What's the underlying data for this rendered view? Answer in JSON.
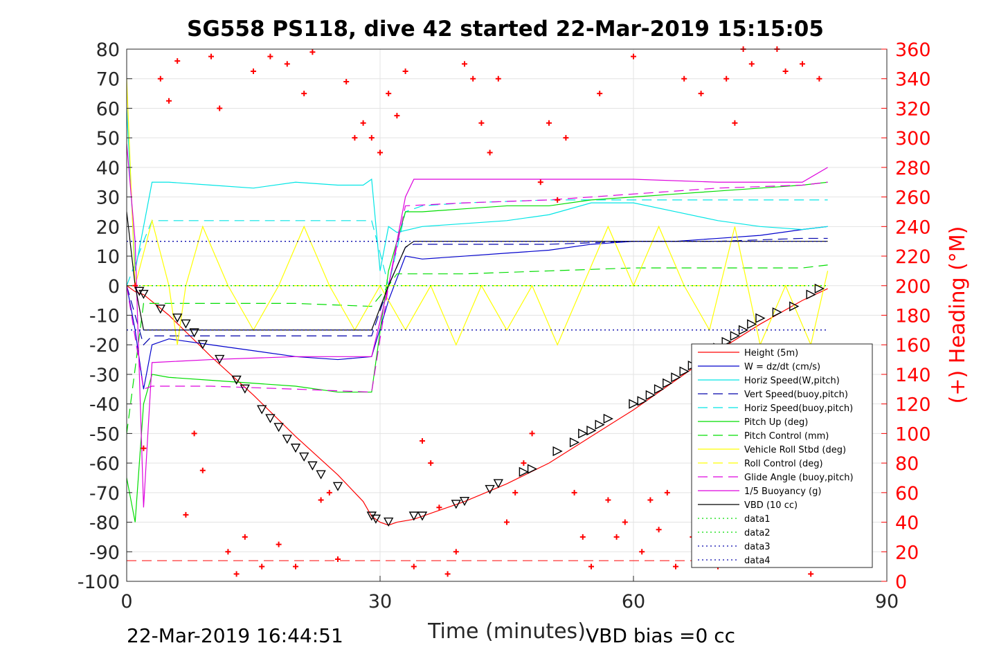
{
  "chart_data": {
    "type": "line",
    "title": "SG558 PS118, dive 42 started 22-Mar-2019 15:15:05",
    "xlabel": "Time (minutes)",
    "ylabel": "",
    "y2label": "(+) Heading (°M)",
    "xlim": [
      0,
      90
    ],
    "ylim": [
      -100,
      80
    ],
    "y2lim": [
      0,
      360
    ],
    "xticks": [
      "0",
      "30",
      "60",
      "90"
    ],
    "yticks": [
      "80",
      "70",
      "60",
      "50",
      "40",
      "30",
      "20",
      "10",
      "0",
      "-10",
      "-20",
      "-30",
      "-40",
      "-50",
      "-60",
      "-70",
      "-80",
      "-90",
      "-100"
    ],
    "y2ticks": [
      "360",
      "340",
      "320",
      "300",
      "280",
      "260",
      "240",
      "220",
      "200",
      "180",
      "160",
      "140",
      "120",
      "100",
      "80",
      "60",
      "40",
      "20",
      "0"
    ],
    "grid": true,
    "legend_position": "bottom-right",
    "footer_left": "22-Mar-2019 16:44:51",
    "footer_right": "VBD bias =0 cc",
    "colors": {
      "red": "#ff0000",
      "blue": "#0000cc",
      "cyan": "#00e5e5",
      "green": "#00dd00",
      "yellow": "#ffff00",
      "magenta": "#dd00dd",
      "black": "#000000",
      "navy": "#0000aa"
    },
    "series": [
      {
        "name": "Height (5m)",
        "color": "#ff0000",
        "style": "solid",
        "x": [
          0,
          1,
          2,
          5,
          10,
          15,
          20,
          25,
          28,
          29,
          30,
          31,
          32,
          34,
          36,
          40,
          45,
          50,
          55,
          60,
          65,
          70,
          75,
          80,
          83
        ],
        "y": [
          0,
          -2,
          -3,
          -10,
          -24,
          -37,
          -51,
          -64,
          -73,
          -78,
          -80,
          -81,
          -80,
          -79,
          -77,
          -73,
          -67,
          -60,
          -51,
          -42,
          -32,
          -22,
          -13,
          -5,
          -1
        ]
      },
      {
        "name": "W = dz/dt (cm/s)",
        "color": "#0000cc",
        "style": "solid",
        "x": [
          0,
          1,
          2,
          3,
          5,
          10,
          15,
          20,
          25,
          29,
          31,
          33,
          35,
          40,
          45,
          50,
          55,
          60,
          65,
          70,
          75,
          80,
          83
        ],
        "y": [
          0,
          -15,
          -35,
          -20,
          -18,
          -20,
          -22,
          -24,
          -25,
          -24,
          -5,
          10,
          9,
          10,
          11,
          12,
          14,
          15,
          15,
          16,
          17,
          19,
          20
        ]
      },
      {
        "name": "Horiz Speed(W,pitch)",
        "color": "#00e5e5",
        "style": "solid",
        "x": [
          0,
          1,
          2,
          3,
          5,
          10,
          15,
          20,
          25,
          28,
          29,
          30,
          31,
          32,
          35,
          40,
          45,
          50,
          55,
          60,
          65,
          70,
          75,
          80,
          83
        ],
        "y": [
          60,
          5,
          20,
          35,
          35,
          34,
          33,
          35,
          34,
          34,
          36,
          5,
          20,
          18,
          20,
          21,
          22,
          24,
          28,
          28,
          25,
          22,
          20,
          19,
          20
        ]
      },
      {
        "name": "Vert Speed(buoy,pitch)",
        "color": "#0000aa",
        "style": "dashed",
        "x": [
          0,
          1,
          2,
          3,
          10,
          20,
          29,
          31,
          33,
          34,
          40,
          50,
          60,
          70,
          80,
          83
        ],
        "y": [
          0,
          -10,
          -20,
          -17,
          -17,
          -17,
          -17,
          0,
          13,
          14,
          14,
          14,
          15,
          15,
          16,
          16
        ]
      },
      {
        "name": "Horiz Speed(buoy,pitch)",
        "color": "#00e5e5",
        "style": "dashed",
        "x": [
          0,
          2,
          3,
          10,
          20,
          29,
          31,
          33,
          35,
          40,
          50,
          60,
          70,
          80,
          83
        ],
        "y": [
          0,
          15,
          22,
          22,
          22,
          22,
          0,
          25,
          27,
          28,
          29,
          29,
          29,
          29,
          29
        ]
      },
      {
        "name": "Pitch Up (deg)",
        "color": "#00dd00",
        "style": "solid",
        "x": [
          0,
          1,
          2,
          3,
          5,
          10,
          15,
          20,
          25,
          29,
          31,
          33,
          35,
          40,
          45,
          50,
          55,
          60,
          65,
          70,
          75,
          80,
          83
        ],
        "y": [
          -65,
          -80,
          -40,
          -30,
          -31,
          -32,
          -33,
          -34,
          -36,
          -36,
          5,
          25,
          25,
          26,
          27,
          27,
          29,
          30,
          31,
          32,
          33,
          34,
          35
        ]
      },
      {
        "name": "Pitch Control (mm)",
        "color": "#00dd00",
        "style": "dashed",
        "x": [
          0,
          2,
          3,
          10,
          20,
          29,
          31,
          32,
          40,
          50,
          60,
          70,
          80,
          83
        ],
        "y": [
          -50,
          -6,
          -6,
          -6,
          -6,
          -7,
          0,
          4,
          4,
          5,
          6,
          6,
          6,
          7
        ]
      },
      {
        "name": "Vehicle Roll Stbd (deg)",
        "color": "#ffff00",
        "style": "solid",
        "x": [
          0,
          1,
          3,
          5,
          6,
          7,
          9,
          12,
          15,
          18,
          21,
          24,
          27,
          30,
          33,
          36,
          39,
          42,
          45,
          48,
          51,
          54,
          57,
          60,
          63,
          66,
          69,
          72,
          75,
          78,
          81,
          83
        ],
        "y": [
          70,
          0,
          22,
          0,
          -20,
          0,
          20,
          0,
          -15,
          0,
          20,
          0,
          -15,
          0,
          -15,
          0,
          -20,
          0,
          -15,
          0,
          -20,
          0,
          20,
          0,
          20,
          0,
          -15,
          20,
          -20,
          0,
          -20,
          5
        ]
      },
      {
        "name": "Roll Control (deg)",
        "color": "#ffff00",
        "style": "dashed",
        "x": [
          0,
          83
        ],
        "y": [
          0,
          0
        ]
      },
      {
        "name": "Glide Angle (buoy,pitch)",
        "color": "#dd00dd",
        "style": "dashed",
        "x": [
          0,
          2,
          3,
          10,
          20,
          29,
          31,
          33,
          40,
          50,
          60,
          70,
          80,
          83
        ],
        "y": [
          0,
          -35,
          -34,
          -34,
          -35,
          -36,
          0,
          27,
          28,
          29,
          31,
          33,
          34,
          35
        ]
      },
      {
        "name": "1/5 Buoyancy (g)",
        "color": "#dd00dd",
        "style": "solid",
        "x": [
          0,
          1,
          2,
          3,
          10,
          20,
          29,
          31,
          33,
          34,
          40,
          50,
          60,
          70,
          80,
          83
        ],
        "y": [
          48,
          15,
          -75,
          -26,
          -25,
          -24,
          -24,
          0,
          30,
          36,
          36,
          36,
          36,
          35,
          35,
          40
        ]
      },
      {
        "name": "VBD (10 cc)",
        "color": "#000000",
        "style": "solid",
        "x": [
          0,
          1,
          2,
          3,
          10,
          20,
          29,
          31,
          33,
          34,
          40,
          50,
          60,
          70,
          80,
          83
        ],
        "y": [
          25,
          0,
          -15,
          -15,
          -15,
          -15,
          -15,
          0,
          13,
          15,
          15,
          15,
          15,
          15,
          15,
          15
        ]
      },
      {
        "name": "data1",
        "color": "#00dd00",
        "style": "dotted",
        "x": [
          0,
          83
        ],
        "y": [
          0,
          0
        ]
      },
      {
        "name": "data2",
        "color": "#00dd00",
        "style": "dotted",
        "x": [
          0,
          83
        ],
        "y": [
          0,
          0
        ]
      },
      {
        "name": "data3",
        "color": "#0000aa",
        "style": "dotted",
        "x": [
          0,
          83
        ],
        "y": [
          15,
          15
        ]
      },
      {
        "name": "data4",
        "color": "#0000aa",
        "style": "dotted",
        "x": [
          0,
          83
        ],
        "y": [
          -15,
          -15
        ]
      }
    ],
    "extra_lines": [
      {
        "color": "#ff0000",
        "style": "dashed",
        "x": [
          0,
          83
        ],
        "y": [
          -93,
          -93
        ]
      }
    ],
    "heading_markers": {
      "color": "#ff0000",
      "axis": "right",
      "x": [
        1,
        2,
        4,
        5,
        6,
        7,
        8,
        9,
        10,
        11,
        12,
        13,
        14,
        15,
        16,
        17,
        18,
        19,
        20,
        21,
        22,
        23,
        24,
        25,
        26,
        27,
        28,
        29,
        30,
        31,
        32,
        33,
        34,
        35,
        36,
        37,
        38,
        39,
        40,
        41,
        42,
        43,
        44,
        45,
        46,
        47,
        48,
        49,
        50,
        51,
        52,
        53,
        54,
        55,
        56,
        57,
        58,
        59,
        60,
        61,
        62,
        63,
        64,
        65,
        66,
        67,
        68,
        69,
        70,
        71,
        72,
        73,
        74,
        75,
        76,
        77,
        78,
        79,
        80,
        81,
        82
      ],
      "y": [
        200,
        90,
        340,
        325,
        352,
        45,
        100,
        75,
        355,
        320,
        20,
        5,
        30,
        345,
        10,
        355,
        25,
        350,
        10,
        330,
        358,
        55,
        60,
        15,
        338,
        300,
        310,
        300,
        290,
        330,
        315,
        345,
        10,
        95,
        80,
        50,
        5,
        20,
        350,
        340,
        310,
        290,
        340,
        40,
        60,
        80,
        100,
        270,
        310,
        258,
        300,
        60,
        30,
        10,
        330,
        55,
        30,
        40,
        355,
        20,
        55,
        35,
        60,
        10,
        340,
        30,
        330,
        20,
        10,
        340,
        310,
        360,
        350,
        40,
        20,
        360,
        345,
        15,
        350,
        5,
        340
      ]
    },
    "vbd_markers": {
      "color": "#000000",
      "x": [
        1.5,
        2,
        4,
        6,
        7,
        8,
        9,
        11,
        13,
        14,
        16,
        17,
        18,
        19,
        20,
        21,
        22,
        23,
        25,
        29,
        29.5,
        31,
        34,
        35,
        39,
        40,
        43,
        44,
        47,
        48,
        51,
        53,
        54,
        55,
        56,
        57,
        60,
        61,
        62,
        63,
        64,
        65,
        66,
        67,
        68,
        69,
        70,
        71,
        72,
        73,
        74,
        75,
        77,
        79,
        81,
        82
      ],
      "y": [
        -2,
        -3,
        -8,
        -11,
        -13,
        -16,
        -20,
        -25,
        -32,
        -35,
        -42,
        -45,
        -48,
        -52,
        -55,
        -58,
        -61,
        -64,
        -68,
        -78,
        -79,
        -80,
        -78,
        -78,
        -74,
        -73,
        -69,
        -67,
        -63,
        -62,
        -56,
        -53,
        -50,
        -49,
        -47,
        -45,
        -40,
        -39,
        -37,
        -35,
        -33,
        -31,
        -29,
        -27,
        -25,
        -23,
        -21,
        -19,
        -17,
        -15,
        -13,
        -11,
        -9,
        -7,
        -3,
        -1
      ]
    }
  }
}
